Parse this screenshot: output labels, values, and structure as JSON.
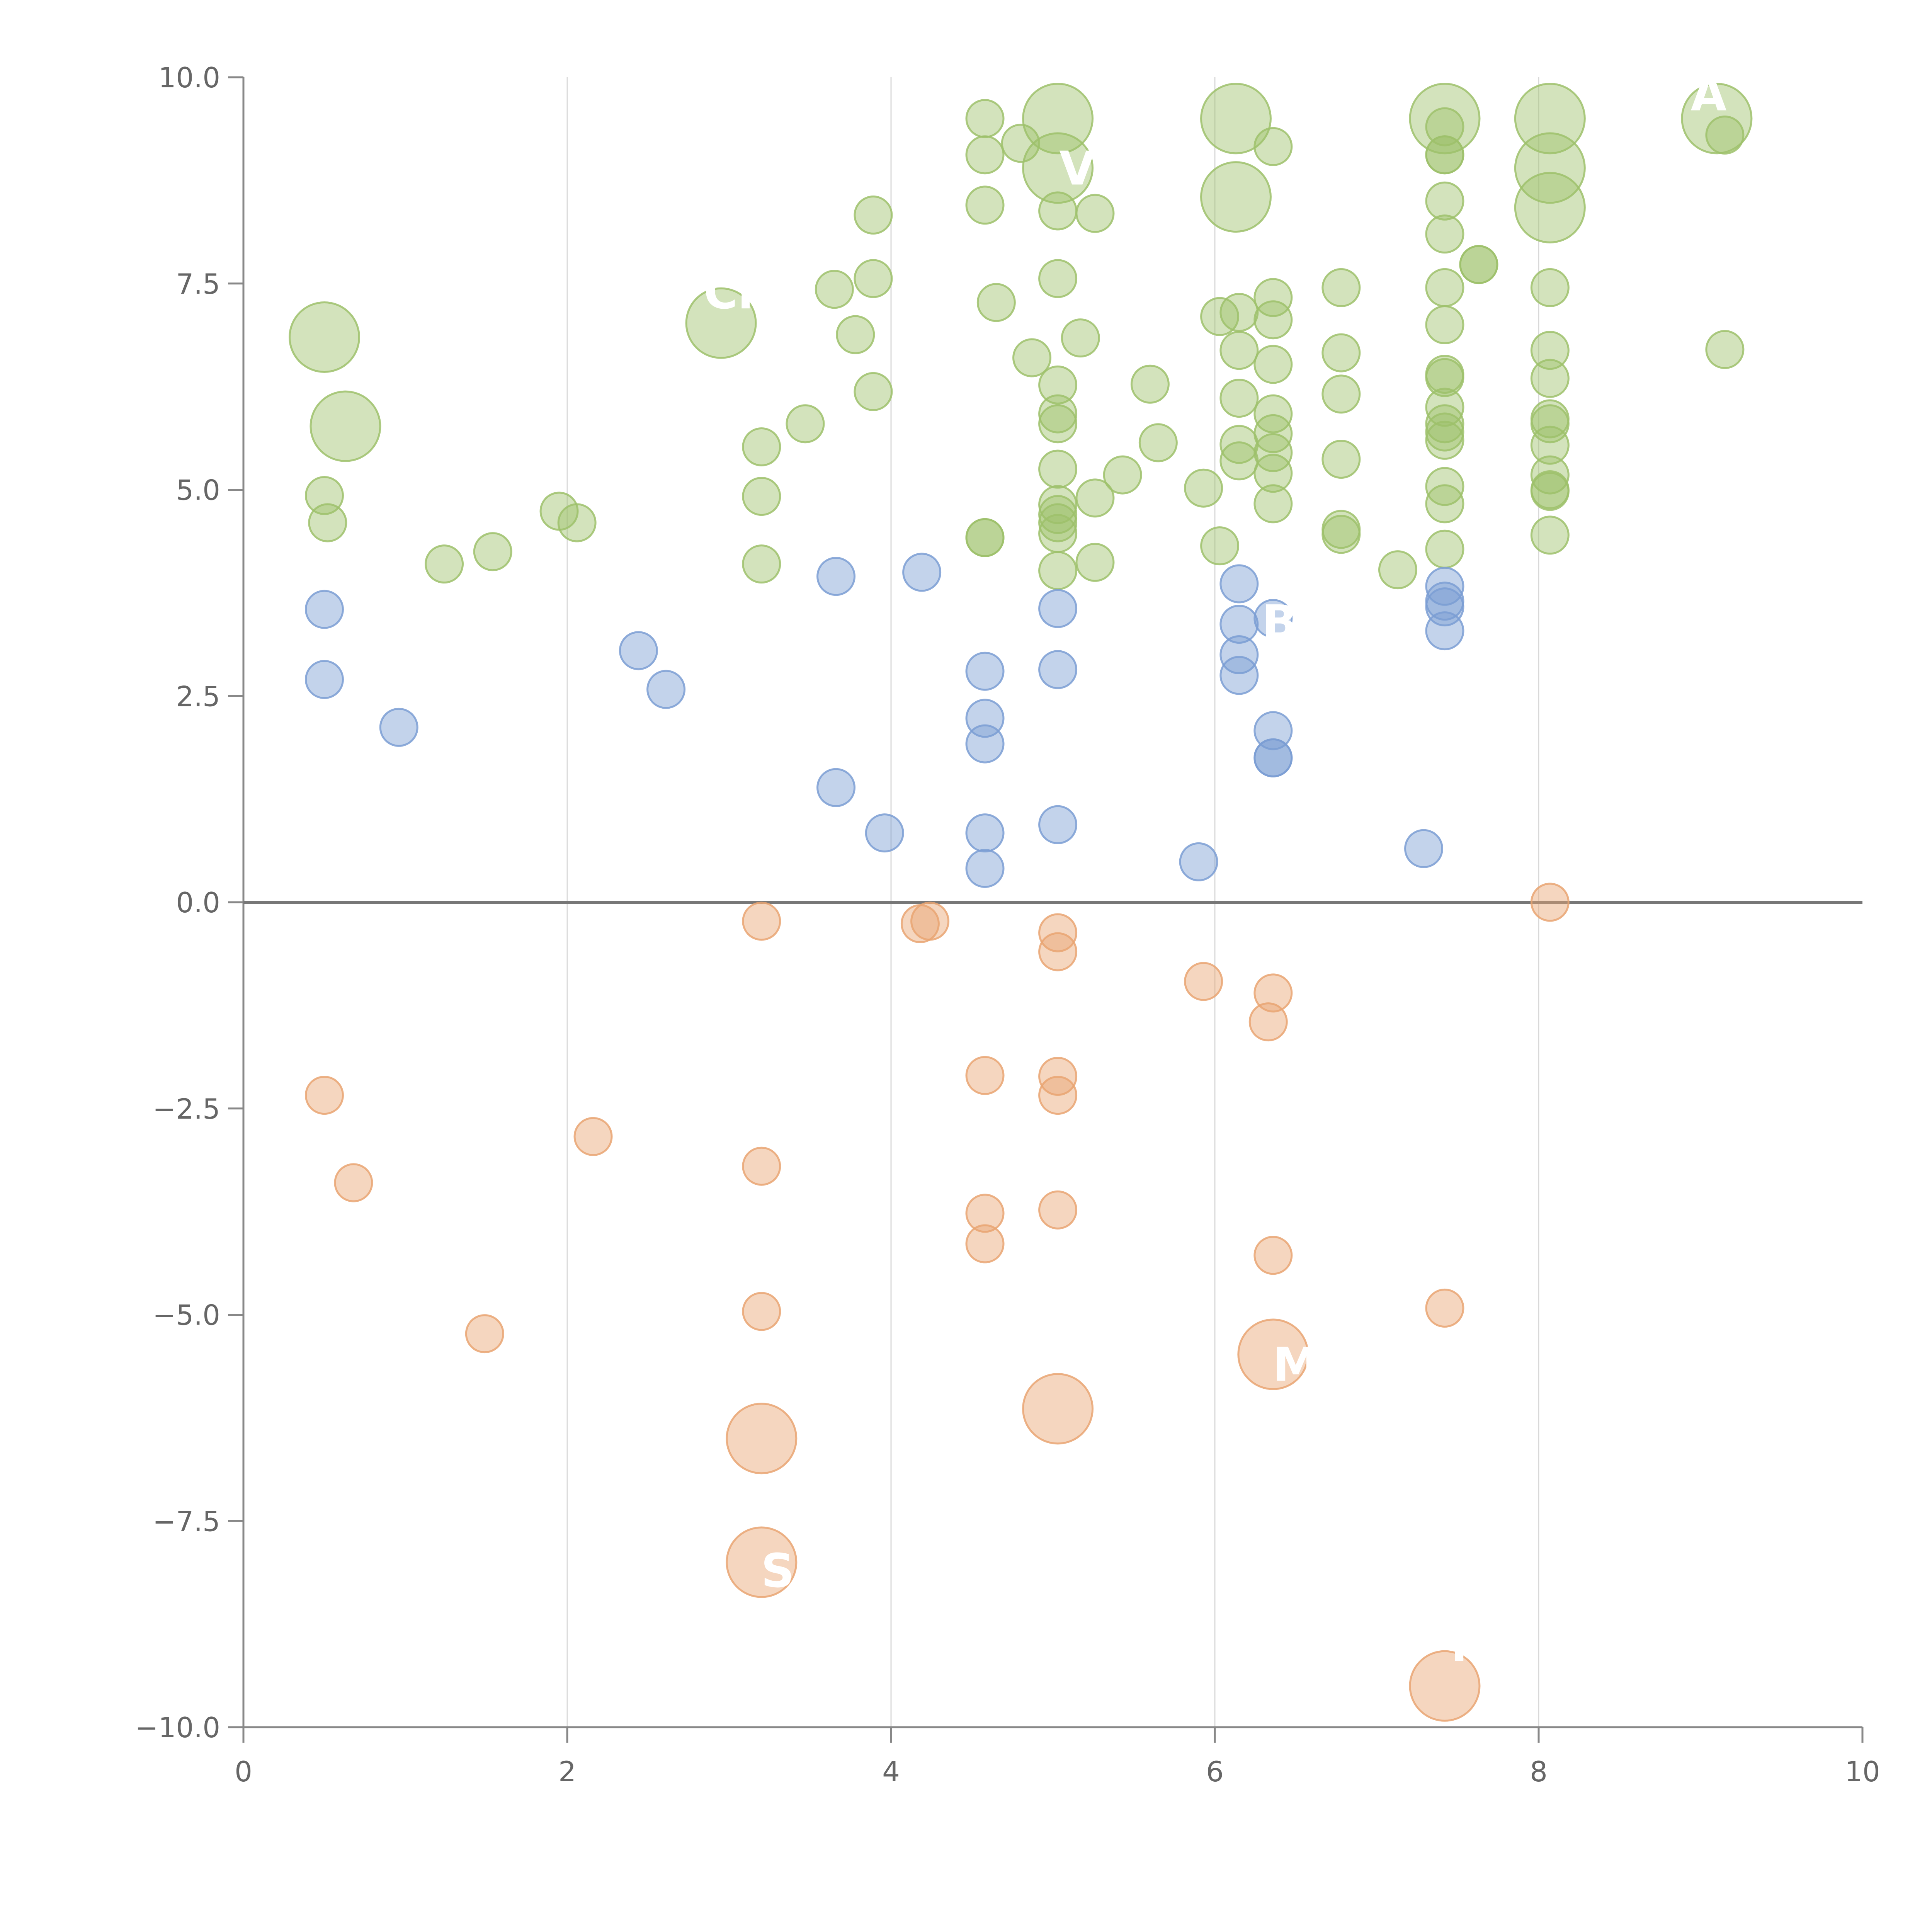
{
  "chart_data": {
    "type": "scatter",
    "title": "",
    "xlabel": "",
    "ylabel": "",
    "xlim": [
      0,
      10
    ],
    "ylim": [
      -10,
      10
    ],
    "x_ticks": [
      "0",
      "2",
      "4",
      "6",
      "8",
      "10"
    ],
    "y_ticks": [
      "10.0",
      "7.5",
      "5.0",
      "2.5",
      "0.0",
      "−2.5",
      "−5.0",
      "−7.5",
      "−10.0"
    ],
    "grid": "vertical gridlines at x = 2, 4, 6, 8; zero line at y = 0",
    "colors": {
      "green": "#9dc16b",
      "blue": "#7b9ed3",
      "orange": "#e9a572"
    },
    "series": [
      {
        "color": "green",
        "points": [
          [
            0.5,
            6.85,
            "L"
          ],
          [
            0.63,
            5.77,
            "L"
          ],
          [
            0.5,
            4.93
          ],
          [
            0.52,
            4.6
          ],
          [
            1.24,
            4.1
          ],
          [
            1.54,
            4.25
          ],
          [
            1.95,
            4.74
          ],
          [
            2.06,
            4.6
          ],
          [
            2.95,
            7.02,
            "L"
          ],
          [
            3.2,
            5.52
          ],
          [
            3.2,
            4.92
          ],
          [
            3.2,
            4.1
          ],
          [
            3.47,
            5.8
          ],
          [
            3.65,
            7.43
          ],
          [
            3.78,
            6.88
          ],
          [
            3.89,
            8.33
          ],
          [
            3.89,
            7.56
          ],
          [
            3.89,
            6.19
          ],
          [
            4.58,
            9.5
          ],
          [
            4.58,
            9.06
          ],
          [
            4.58,
            8.45
          ],
          [
            4.58,
            4.42
          ],
          [
            4.58,
            4.42
          ],
          [
            4.65,
            7.27
          ],
          [
            4.8,
            9.2
          ],
          [
            4.87,
            6.6
          ],
          [
            5.03,
            9.5,
            "L"
          ],
          [
            5.03,
            8.9,
            "L"
          ],
          [
            5.03,
            8.38
          ],
          [
            5.03,
            7.56
          ],
          [
            5.03,
            6.27
          ],
          [
            5.03,
            5.92
          ],
          [
            5.03,
            5.8
          ],
          [
            5.03,
            5.25
          ],
          [
            5.03,
            4.82
          ],
          [
            5.03,
            4.7
          ],
          [
            5.03,
            4.6
          ],
          [
            5.03,
            4.47
          ],
          [
            5.03,
            4.02
          ],
          [
            5.17,
            6.84
          ],
          [
            5.26,
            8.35
          ],
          [
            5.26,
            4.9
          ],
          [
            5.26,
            4.12
          ],
          [
            5.43,
            5.18
          ],
          [
            5.6,
            6.28
          ],
          [
            5.65,
            5.57
          ],
          [
            5.93,
            5.02
          ],
          [
            6.03,
            7.1
          ],
          [
            6.03,
            4.32
          ],
          [
            6.13,
            9.5,
            "L"
          ],
          [
            6.13,
            8.55,
            "L"
          ],
          [
            6.15,
            7.15
          ],
          [
            6.15,
            6.69
          ],
          [
            6.15,
            6.11
          ],
          [
            6.15,
            5.55
          ],
          [
            6.15,
            5.35
          ],
          [
            6.36,
            9.16
          ],
          [
            6.36,
            7.33
          ],
          [
            6.36,
            7.06
          ],
          [
            6.36,
            6.52
          ],
          [
            6.36,
            5.92
          ],
          [
            6.36,
            5.68
          ],
          [
            6.36,
            5.45
          ],
          [
            6.36,
            5.2
          ],
          [
            6.36,
            4.83
          ],
          [
            6.78,
            7.45
          ],
          [
            6.78,
            6.66
          ],
          [
            6.78,
            6.16
          ],
          [
            6.78,
            5.37
          ],
          [
            6.78,
            4.52
          ],
          [
            6.78,
            4.46
          ],
          [
            7.13,
            4.03
          ],
          [
            7.42,
            9.5,
            "L"
          ],
          [
            7.42,
            9.4
          ],
          [
            7.42,
            9.06
          ],
          [
            7.42,
            9.06
          ],
          [
            7.42,
            8.5
          ],
          [
            7.42,
            8.1
          ],
          [
            7.42,
            7.45
          ],
          [
            7.42,
            7.0
          ],
          [
            7.42,
            6.4
          ],
          [
            7.42,
            6.36
          ],
          [
            7.42,
            6.0
          ],
          [
            7.42,
            5.8
          ],
          [
            7.42,
            5.7
          ],
          [
            7.42,
            5.6
          ],
          [
            7.42,
            5.04
          ],
          [
            7.42,
            4.83
          ],
          [
            7.42,
            4.28
          ],
          [
            7.63,
            7.73
          ],
          [
            7.63,
            7.73
          ],
          [
            8.07,
            9.5,
            "L"
          ],
          [
            8.07,
            8.9,
            "L"
          ],
          [
            8.07,
            8.42,
            "L"
          ],
          [
            8.07,
            7.45
          ],
          [
            8.07,
            6.69
          ],
          [
            8.07,
            6.35
          ],
          [
            8.07,
            5.86
          ],
          [
            8.07,
            5.8
          ],
          [
            8.07,
            5.54
          ],
          [
            8.07,
            5.18
          ],
          [
            8.07,
            5.0
          ],
          [
            8.07,
            4.98
          ],
          [
            8.07,
            4.45
          ],
          [
            9.1,
            9.5,
            "L"
          ],
          [
            9.15,
            9.3
          ],
          [
            9.15,
            6.7
          ]
        ]
      },
      {
        "color": "blue",
        "points": [
          [
            0.5,
            3.55
          ],
          [
            0.5,
            2.7
          ],
          [
            0.96,
            2.12
          ],
          [
            2.44,
            3.05
          ],
          [
            2.61,
            2.58
          ],
          [
            3.66,
            3.95
          ],
          [
            3.66,
            1.39
          ],
          [
            3.96,
            0.84
          ],
          [
            4.19,
            4.0
          ],
          [
            4.58,
            2.8
          ],
          [
            4.58,
            2.23
          ],
          [
            4.58,
            1.92
          ],
          [
            4.58,
            0.84
          ],
          [
            4.58,
            0.41
          ],
          [
            5.03,
            3.56
          ],
          [
            5.03,
            2.82
          ],
          [
            5.03,
            0.94
          ],
          [
            5.9,
            0.49
          ],
          [
            6.15,
            3.86
          ],
          [
            6.15,
            3.37
          ],
          [
            6.15,
            3.0
          ],
          [
            6.15,
            2.75
          ],
          [
            6.36,
            3.44
          ],
          [
            6.36,
            2.08
          ],
          [
            6.36,
            1.75
          ],
          [
            6.36,
            1.75
          ],
          [
            7.29,
            0.65
          ],
          [
            7.42,
            3.83
          ],
          [
            7.42,
            3.65
          ],
          [
            7.42,
            3.58
          ],
          [
            7.42,
            3.29
          ]
        ]
      },
      {
        "color": "orange",
        "points": [
          [
            0.5,
            -2.34
          ],
          [
            0.68,
            -3.4
          ],
          [
            1.49,
            -5.23
          ],
          [
            2.16,
            -2.84
          ],
          [
            3.2,
            -0.23
          ],
          [
            3.2,
            -3.2
          ],
          [
            3.2,
            -4.96
          ],
          [
            3.2,
            -6.5,
            "L"
          ],
          [
            3.2,
            -8.0,
            "L"
          ],
          [
            4.18,
            -0.26
          ],
          [
            4.24,
            -0.23
          ],
          [
            4.58,
            -2.1
          ],
          [
            4.58,
            -3.77
          ],
          [
            4.58,
            -4.14
          ],
          [
            5.03,
            -0.37
          ],
          [
            5.03,
            -0.6
          ],
          [
            5.03,
            -2.11
          ],
          [
            5.03,
            -2.34
          ],
          [
            5.03,
            -3.73
          ],
          [
            5.03,
            -6.14,
            "L"
          ],
          [
            5.93,
            -0.96
          ],
          [
            6.33,
            -1.45
          ],
          [
            6.36,
            -1.1
          ],
          [
            6.36,
            -4.28
          ],
          [
            6.36,
            -5.48,
            "L"
          ],
          [
            7.42,
            -4.92
          ],
          [
            7.42,
            -9.5,
            "L"
          ],
          [
            8.07,
            0.0
          ]
        ]
      }
    ],
    "bubble_labels": [
      {
        "text": "A",
        "x": 9.05,
        "y": 9.6
      },
      {
        "text": "V",
        "x": 5.15,
        "y": 8.7
      },
      {
        "text": "Ch",
        "x": 3.05,
        "y": 7.2
      },
      {
        "text": "S",
        "x": 3.3,
        "y": -8.3
      },
      {
        "text": "M",
        "x": 6.5,
        "y": -5.8
      },
      {
        "text": "M",
        "x": 7.6,
        "y": -9.2
      },
      {
        "text": "B",
        "x": 6.4,
        "y": 3.2
      }
    ]
  }
}
